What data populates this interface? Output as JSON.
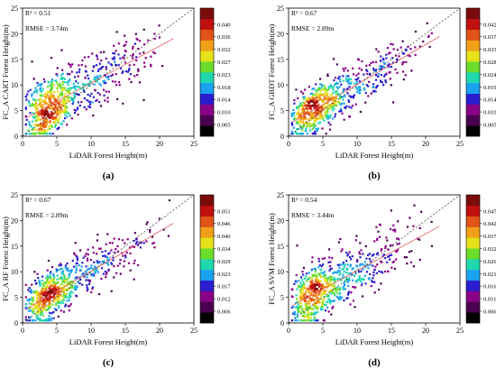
{
  "figure": {
    "background": "#ffffff"
  },
  "chart_data": [
    {
      "id": "a",
      "type": "scatter",
      "panel_label": "(a)",
      "xlabel": "LiDAR Forest Height(m)",
      "ylabel": "FC_A CART Forest Height(m)",
      "annotations": [
        "R² = 0.51",
        "RMSE = 3.74m"
      ],
      "xlim": [
        0,
        25
      ],
      "ylim": [
        0,
        25
      ],
      "xticks": [
        0,
        5,
        10,
        15,
        20,
        25
      ],
      "yticks": [
        0,
        5,
        10,
        15,
        20,
        25
      ],
      "grid": false,
      "reference_line": {
        "style": "dashed",
        "slope": 1,
        "intercept": 0
      },
      "fit_line": {
        "slope": 0.72,
        "intercept": 3.2
      },
      "colorbar": {
        "ticks": [
          "0.040",
          "0.036",
          "0.032",
          "0.027",
          "0.023",
          "0.018",
          "0.014",
          "0.010",
          "0.005"
        ]
      },
      "point_cloud": {
        "n": 700,
        "center": [
          4,
          4
        ],
        "x_range": [
          1,
          22
        ],
        "spread": 3.0,
        "seed": 11
      }
    },
    {
      "id": "b",
      "type": "scatter",
      "panel_label": "(b)",
      "xlabel": "LiDAR Forest Height(m)",
      "ylabel": "FC_A GBDT Forest Height(m)",
      "annotations": [
        "R² = 0.67",
        "RMSE = 2.89m"
      ],
      "xlim": [
        0,
        25
      ],
      "ylim": [
        0,
        25
      ],
      "xticks": [
        0,
        5,
        10,
        15,
        20,
        25
      ],
      "yticks": [
        0,
        5,
        10,
        15,
        20,
        25
      ],
      "grid": false,
      "reference_line": {
        "style": "dashed",
        "slope": 1,
        "intercept": 0
      },
      "fit_line": {
        "slope": 0.78,
        "intercept": 2.3
      },
      "colorbar": {
        "ticks": [
          "0.042",
          "0.037",
          "0.033",
          "0.028",
          "0.024",
          "0.019",
          "0.014",
          "0.010",
          "0.005"
        ]
      },
      "point_cloud": {
        "n": 700,
        "center": [
          4,
          4
        ],
        "x_range": [
          1,
          22
        ],
        "spread": 2.3,
        "seed": 22
      }
    },
    {
      "id": "c",
      "type": "scatter",
      "panel_label": "(c)",
      "xlabel": "LiDAR Forest Height(m)",
      "ylabel": "FC_A RF Forest Height(m)",
      "annotations": [
        "R² = 0.67",
        "RMSE = 2.89m"
      ],
      "xlim": [
        0,
        25
      ],
      "ylim": [
        0,
        25
      ],
      "xticks": [
        0,
        5,
        10,
        15,
        20,
        25
      ],
      "yticks": [
        0,
        5,
        10,
        15,
        20,
        25
      ],
      "grid": false,
      "reference_line": {
        "style": "dashed",
        "slope": 1,
        "intercept": 0
      },
      "fit_line": {
        "slope": 0.78,
        "intercept": 2.3
      },
      "colorbar": {
        "ticks": [
          "0.051",
          "0.046",
          "0.040",
          "0.034",
          "0.029",
          "0.023",
          "0.017",
          "0.012",
          "0.006"
        ]
      },
      "point_cloud": {
        "n": 700,
        "center": [
          4,
          4
        ],
        "x_range": [
          1,
          22
        ],
        "spread": 2.3,
        "seed": 33
      }
    },
    {
      "id": "d",
      "type": "scatter",
      "panel_label": "(d)",
      "xlabel": "LiDAR Forest Height(m)",
      "ylabel": "FC_A SVM Forest Height(m)",
      "annotations": [
        "R² = 0.54",
        "RMSE = 3.44m"
      ],
      "xlim": [
        0,
        25
      ],
      "ylim": [
        0,
        25
      ],
      "xticks": [
        0,
        5,
        10,
        15,
        20,
        25
      ],
      "yticks": [
        0,
        5,
        10,
        15,
        20,
        25
      ],
      "grid": false,
      "reference_line": {
        "style": "dashed",
        "slope": 1,
        "intercept": 0
      },
      "fit_line": {
        "slope": 0.72,
        "intercept": 3.0
      },
      "colorbar": {
        "ticks": [
          "0.047",
          "0.042",
          "0.037",
          "0.032",
          "0.026",
          "0.021",
          "0.016",
          "0.011",
          "0.006"
        ]
      },
      "point_cloud": {
        "n": 700,
        "center": [
          4,
          4
        ],
        "x_range": [
          1,
          22
        ],
        "spread": 2.9,
        "seed": 44
      }
    }
  ],
  "colormap": [
    "#000000",
    "#4a0050",
    "#8a0088",
    "#2a1ed0",
    "#1aa2f0",
    "#20d8b0",
    "#6adc2a",
    "#e6e21a",
    "#f0a018",
    "#e05418",
    "#c01010",
    "#7a0c0c",
    "#cccccc"
  ],
  "line_colors": {
    "reference": "#333333",
    "fit": "#e06060"
  }
}
